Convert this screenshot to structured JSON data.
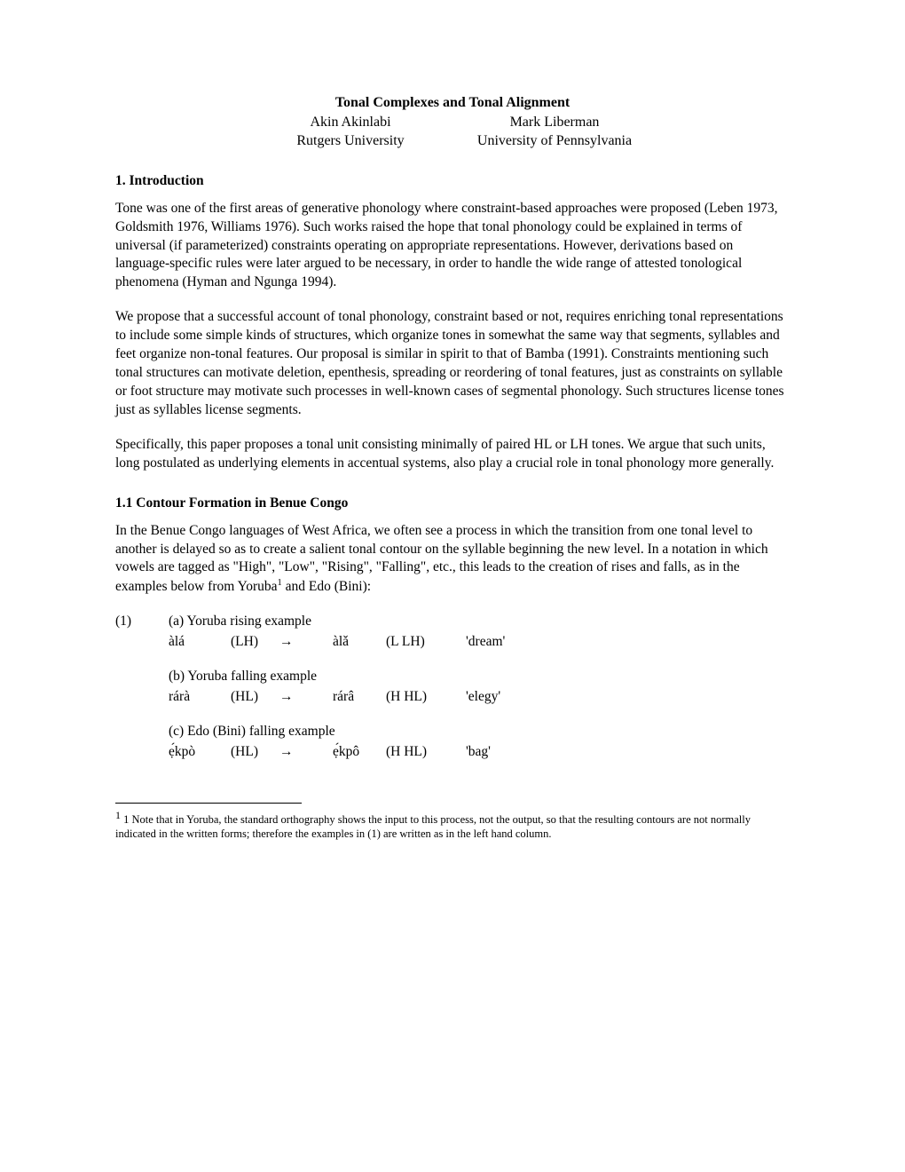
{
  "title": "Tonal Complexes and Tonal Alignment",
  "author1_name": "Akin Akinlabi",
  "author1_affiliation": "Rutgers University",
  "author2_name": "Mark Liberman",
  "author2_affiliation": "University of Pennsylvania",
  "section1_heading": "1. Introduction",
  "para1": "Tone was one of the first areas of generative phonology where constraint-based approaches were proposed (Leben 1973, Goldsmith 1976, Williams 1976). Such works raised the hope that tonal phonology could be explained in terms of universal (if parameterized) constraints operating on appropriate representations. However, derivations based on language-specific rules were later argued to be necessary, in order to handle the wide range of attested tonological phenomena (Hyman and Ngunga 1994).",
  "para2": "We propose that a successful account of tonal phonology, constraint based or not, requires enriching tonal representations to include some simple kinds of structures, which organize tones in somewhat the same way that segments, syllables and feet organize non-tonal features. Our proposal is similar in spirit to that of Bamba (1991). Constraints mentioning such tonal structures can motivate deletion, epenthesis, spreading or reordering of tonal features, just as constraints on syllable or foot structure may motivate such processes in well-known cases of segmental phonology. Such structures license tones just as syllables license segments.",
  "para3": "Specifically, this paper proposes a tonal unit consisting minimally of paired HL or LH tones. We argue that such units, long postulated as underlying elements in accentual systems, also play a crucial role in tonal phonology more generally.",
  "section11_heading": "1.1 Contour Formation in Benue Congo",
  "para4_pre": "In the Benue Congo languages of West Africa, we often see a process in which the transition from one tonal level to another is delayed so as to create a salient tonal contour on the syllable beginning the new level. In a notation in which vowels are tagged as \"High\", \"Low\", \"Rising\", \"Falling\", etc., this leads to the creation of rises and falls, as in the examples below from Yoruba",
  "para4_sup": "1",
  "para4_post": " and Edo (Bini):",
  "example_number": "(1)",
  "ex_a_label": "(a) Yoruba rising example",
  "ex_a_word1": "àlá",
  "ex_a_tone1": "(LH)",
  "ex_a_arrow": "→",
  "ex_a_word2": "àlǎ",
  "ex_a_tone2": "(L LH)",
  "ex_a_gloss": "'dream'",
  "ex_b_label": "(b) Yoruba falling example",
  "ex_b_word1": "rárà",
  "ex_b_tone1": "(HL)",
  "ex_b_arrow": "→",
  "ex_b_word2": "rárâ",
  "ex_b_tone2": "(H HL)",
  "ex_b_gloss": "'elegy'",
  "ex_c_label": "(c) Edo (Bini) falling example",
  "ex_c_word1": "ẹ́kpò",
  "ex_c_tone1": "(HL)",
  "ex_c_arrow": "→",
  "ex_c_word2": "ẹ́kpô",
  "ex_c_tone2": "(H HL)",
  "ex_c_gloss": "'bag'",
  "footnote_num": "1",
  "footnote_text": " 1 Note that in Yoruba, the standard orthography shows the input to this process, not the output, so that the resulting contours are not normally indicated in the written forms; therefore the examples in (1) are written as in the left hand column."
}
